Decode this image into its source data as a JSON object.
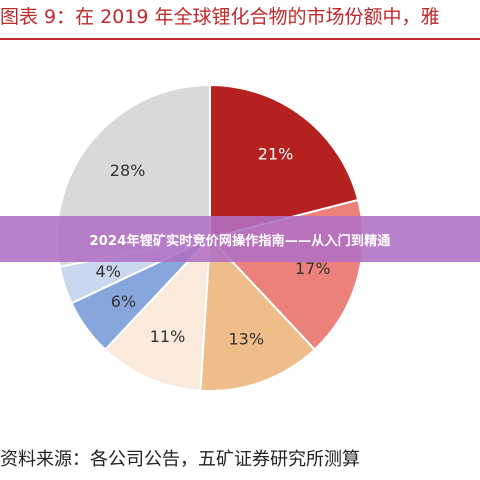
{
  "figure": {
    "title": "图表 9：在 2019 年全球锂化合物的市场份额中，雅",
    "source": "资料来源：各公司公告，五矿证券研究所测算"
  },
  "banner": {
    "text": "2024年锂矿实时竞价网操作指南——从入门到精通"
  },
  "chart_data": {
    "type": "pie",
    "title": "",
    "start": "12 o'clock",
    "direction": "clockwise",
    "slices": [
      {
        "value": 21,
        "label": "21%",
        "color": "#b5211e",
        "label_color": "#ffffff"
      },
      {
        "value": 17,
        "label": "17%",
        "color": "#ec807a",
        "label_color": "#333333"
      },
      {
        "value": 13,
        "label": "13%",
        "color": "#efbd8a",
        "label_color": "#333333"
      },
      {
        "value": 11,
        "label": "11%",
        "color": "#faeadb",
        "label_color": "#333333"
      },
      {
        "value": 6,
        "label": "6%",
        "color": "#86a6dc",
        "label_color": "#333333"
      },
      {
        "value": 4,
        "label": "4%",
        "color": "#c9d8ee",
        "label_color": "#333333"
      },
      {
        "value": 28,
        "label": "28%",
        "color": "#d9d9d9",
        "label_color": "#333333"
      }
    ]
  }
}
